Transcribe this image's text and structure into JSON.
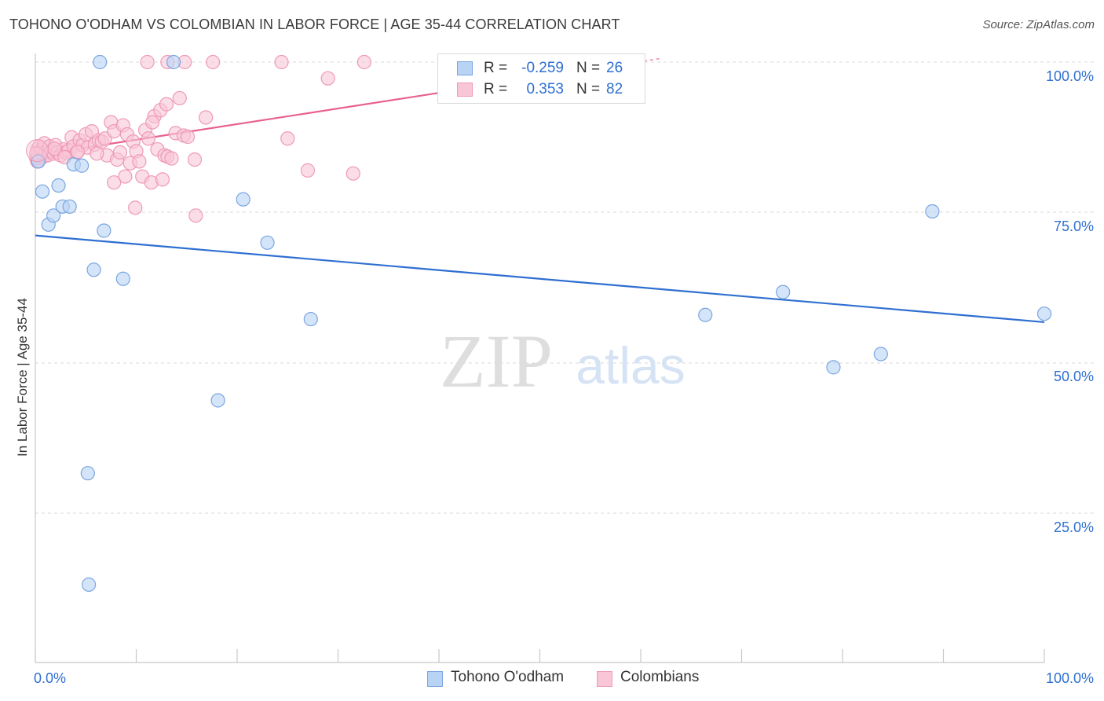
{
  "header": {
    "title": "TOHONO O'ODHAM VS COLOMBIAN IN LABOR FORCE | AGE 35-44 CORRELATION CHART",
    "source": "Source: ZipAtlas.com"
  },
  "watermark": {
    "zip": "ZIP",
    "atlas": "atlas"
  },
  "legend_top": {
    "rows": [
      {
        "r_label": "R =",
        "r_value": "-0.259",
        "n_label": "N =",
        "n_value": "26"
      },
      {
        "r_label": "R =",
        "r_value": "0.353",
        "n_label": "N =",
        "n_value": "82"
      }
    ]
  },
  "legend_bottom": {
    "items": [
      {
        "label": "Tohono O'odham"
      },
      {
        "label": "Colombians"
      }
    ]
  },
  "colors": {
    "blue_fill": "#b9d3f5",
    "blue_stroke": "#7aa6e0",
    "blue_line": "#2f6fd1",
    "pink_fill": "#f9c6d7",
    "pink_stroke": "#ee9ab7",
    "pink_line": "#e8618e",
    "grid": "#d8d8d8",
    "axis_text": "#2f6fd1"
  },
  "chart_data": {
    "type": "scatter",
    "title": "TOHONO O'ODHAM VS COLOMBIAN IN LABOR FORCE | AGE 35-44 CORRELATION CHART",
    "xlabel": "",
    "ylabel": "In Labor Force | Age 35-44",
    "xlim": [
      0,
      100
    ],
    "ylim": [
      0,
      102
    ],
    "x_tick_labels": [
      "0.0%",
      "100.0%"
    ],
    "y_ticks": [
      25,
      50,
      75,
      100
    ],
    "y_tick_labels": [
      "25.0%",
      "50.0%",
      "75.0%",
      "100.0%"
    ],
    "grid": true,
    "legend_position": "top-center",
    "series": [
      {
        "name": "Tohono O'odham",
        "R": -0.259,
        "N": 26,
        "trend": {
          "x": [
            0,
            100
          ],
          "y": [
            71.2,
            56.8
          ]
        },
        "points": [
          {
            "x": 6.4,
            "y": 100
          },
          {
            "x": 13.7,
            "y": 100
          },
          {
            "x": 0.3,
            "y": 83.5
          },
          {
            "x": 0.7,
            "y": 78.5
          },
          {
            "x": 1.3,
            "y": 73.0
          },
          {
            "x": 1.8,
            "y": 74.5
          },
          {
            "x": 2.3,
            "y": 79.5
          },
          {
            "x": 2.7,
            "y": 76.0
          },
          {
            "x": 3.4,
            "y": 76.0
          },
          {
            "x": 3.8,
            "y": 83.0
          },
          {
            "x": 4.6,
            "y": 82.8
          },
          {
            "x": 5.8,
            "y": 65.5
          },
          {
            "x": 6.8,
            "y": 72.0
          },
          {
            "x": 8.7,
            "y": 64.0
          },
          {
            "x": 20.6,
            "y": 77.2
          },
          {
            "x": 23.0,
            "y": 70.0
          },
          {
            "x": 27.3,
            "y": 57.3
          },
          {
            "x": 18.1,
            "y": 43.8
          },
          {
            "x": 5.2,
            "y": 31.7
          },
          {
            "x": 5.3,
            "y": 13.2
          },
          {
            "x": 66.4,
            "y": 58.0
          },
          {
            "x": 74.1,
            "y": 61.8
          },
          {
            "x": 79.1,
            "y": 49.3
          },
          {
            "x": 83.8,
            "y": 51.5
          },
          {
            "x": 88.9,
            "y": 75.2
          },
          {
            "x": 100,
            "y": 58.2
          }
        ]
      },
      {
        "name": "Colombians",
        "R": 0.353,
        "N": 82,
        "trend": {
          "x": [
            0,
            62
          ],
          "y": [
            84.5,
            100.6
          ],
          "dashed_from_x": 40
        },
        "points": [
          {
            "x": 0.1,
            "y": 84.0
          },
          {
            "x": 0.2,
            "y": 85.5
          },
          {
            "x": 0.3,
            "y": 84.5
          },
          {
            "x": 0.4,
            "y": 86.0
          },
          {
            "x": 0.5,
            "y": 84.0
          },
          {
            "x": 0.6,
            "y": 85.0
          },
          {
            "x": 0.7,
            "y": 85.5
          },
          {
            "x": 0.8,
            "y": 84.3
          },
          {
            "x": 0.9,
            "y": 86.5
          },
          {
            "x": 1.0,
            "y": 85.0
          },
          {
            "x": 1.2,
            "y": 84.5
          },
          {
            "x": 1.4,
            "y": 86.0
          },
          {
            "x": 1.6,
            "y": 85.2
          },
          {
            "x": 1.8,
            "y": 84.8
          },
          {
            "x": 2.0,
            "y": 86.2
          },
          {
            "x": 2.2,
            "y": 85.0
          },
          {
            "x": 2.5,
            "y": 84.5
          },
          {
            "x": 2.8,
            "y": 85.5
          },
          {
            "x": 3.0,
            "y": 85.0
          },
          {
            "x": 3.3,
            "y": 85.3
          },
          {
            "x": 3.6,
            "y": 87.5
          },
          {
            "x": 3.8,
            "y": 86.0
          },
          {
            "x": 4.1,
            "y": 85.0
          },
          {
            "x": 4.4,
            "y": 87.0
          },
          {
            "x": 4.7,
            "y": 86.2
          },
          {
            "x": 5.0,
            "y": 88.0
          },
          {
            "x": 5.2,
            "y": 85.8
          },
          {
            "x": 5.6,
            "y": 88.5
          },
          {
            "x": 5.9,
            "y": 86.3
          },
          {
            "x": 6.3,
            "y": 87.0
          },
          {
            "x": 6.6,
            "y": 86.8
          },
          {
            "x": 6.9,
            "y": 87.3
          },
          {
            "x": 7.1,
            "y": 84.5
          },
          {
            "x": 7.5,
            "y": 90.0
          },
          {
            "x": 7.8,
            "y": 88.5
          },
          {
            "x": 8.1,
            "y": 83.8
          },
          {
            "x": 8.4,
            "y": 85.0
          },
          {
            "x": 8.7,
            "y": 89.5
          },
          {
            "x": 8.9,
            "y": 81.0
          },
          {
            "x": 9.1,
            "y": 88.0
          },
          {
            "x": 9.4,
            "y": 83.2
          },
          {
            "x": 9.7,
            "y": 86.8
          },
          {
            "x": 10.0,
            "y": 85.2
          },
          {
            "x": 10.3,
            "y": 83.5
          },
          {
            "x": 10.6,
            "y": 81.0
          },
          {
            "x": 10.9,
            "y": 88.7
          },
          {
            "x": 11.2,
            "y": 87.3
          },
          {
            "x": 11.5,
            "y": 80.0
          },
          {
            "x": 11.8,
            "y": 91.0
          },
          {
            "x": 12.1,
            "y": 85.5
          },
          {
            "x": 12.4,
            "y": 92.0
          },
          {
            "x": 12.8,
            "y": 84.5
          },
          {
            "x": 13.1,
            "y": 84.3
          },
          {
            "x": 13.5,
            "y": 84.0
          },
          {
            "x": 13.9,
            "y": 88.2
          },
          {
            "x": 14.3,
            "y": 94.0
          },
          {
            "x": 14.7,
            "y": 87.8
          },
          {
            "x": 15.1,
            "y": 87.6
          },
          {
            "x": 15.8,
            "y": 83.8
          },
          {
            "x": 16.9,
            "y": 90.8
          },
          {
            "x": 7.8,
            "y": 80.0
          },
          {
            "x": 9.9,
            "y": 75.8
          },
          {
            "x": 12.6,
            "y": 80.5
          },
          {
            "x": 15.9,
            "y": 74.5
          },
          {
            "x": 11.1,
            "y": 100
          },
          {
            "x": 13.1,
            "y": 100
          },
          {
            "x": 14.8,
            "y": 100
          },
          {
            "x": 17.6,
            "y": 100
          },
          {
            "x": 24.4,
            "y": 100
          },
          {
            "x": 32.6,
            "y": 100
          },
          {
            "x": 29.0,
            "y": 97.3
          },
          {
            "x": 13.0,
            "y": 93.0
          },
          {
            "x": 11.6,
            "y": 90.0
          },
          {
            "x": 25.0,
            "y": 87.3
          },
          {
            "x": 27.0,
            "y": 82.0
          },
          {
            "x": 31.5,
            "y": 81.5
          },
          {
            "x": 6.1,
            "y": 84.8
          },
          {
            "x": 4.2,
            "y": 85.1
          },
          {
            "x": 2.9,
            "y": 84.2
          },
          {
            "x": 1.9,
            "y": 85.6
          },
          {
            "x": 0.2,
            "y": 83.5
          },
          {
            "x": 0.1,
            "y": 84.8
          }
        ]
      }
    ]
  }
}
